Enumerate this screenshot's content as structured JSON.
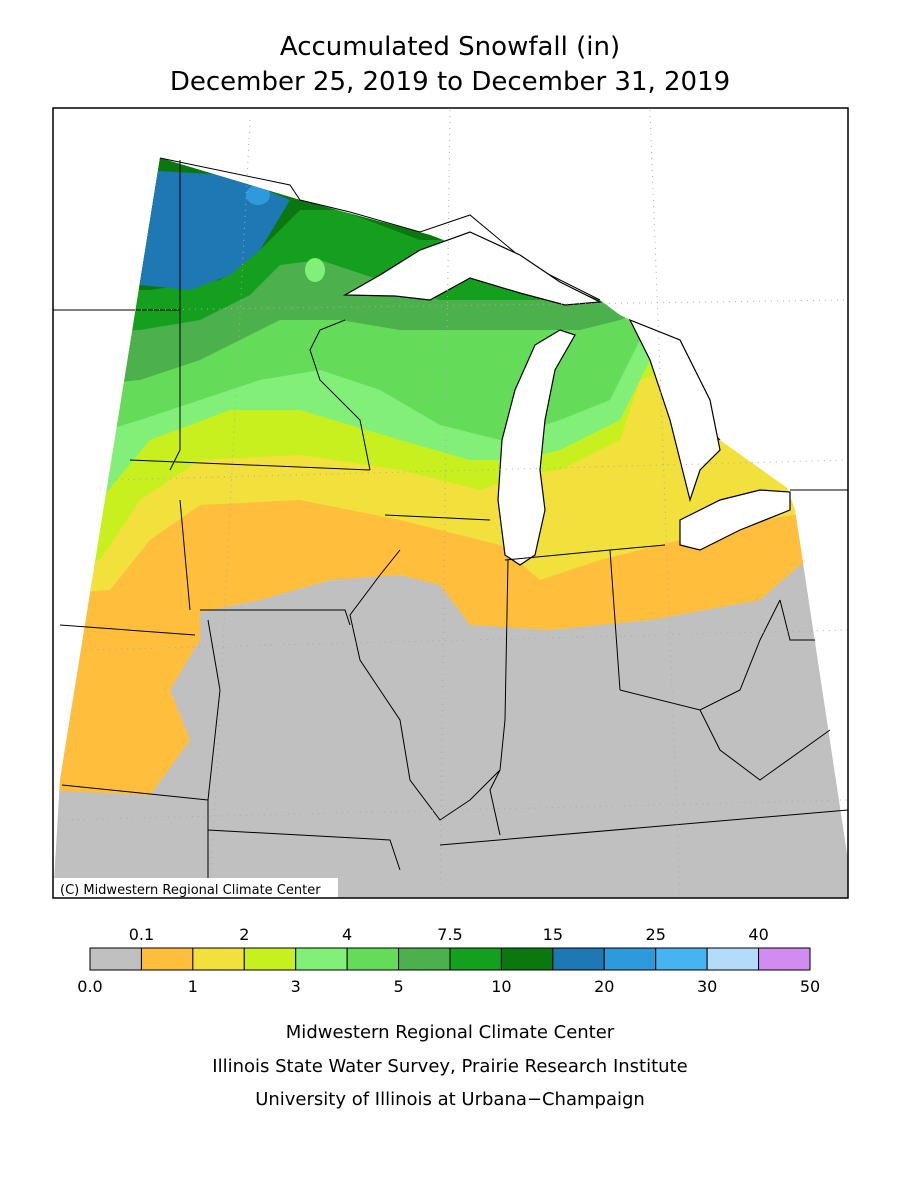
{
  "title": [
    "Accumulated Snowfall (in)",
    "December 25, 2019 to December 31, 2019"
  ],
  "map": {
    "credit": "(C) Midwestern Regional Climate Center"
  },
  "legend": {
    "breaks": [
      {
        "value": 0,
        "label": "0.0"
      },
      0.1,
      1,
      2,
      3,
      4,
      5,
      7.5,
      10,
      15,
      20,
      25,
      30,
      40,
      50
    ],
    "colors": [
      "#c0c0c0",
      "#ffbe3c",
      "#f2e03c",
      "#c8f01e",
      "#82f078",
      "#64dc5a",
      "#4cb04c",
      "#14a01e",
      "#0a780f",
      "#1e78b4",
      "#2e9adc",
      "#46b4f0",
      "#b4dcfa",
      "#d28cf0"
    ]
  },
  "footer": [
    "Midwestern Regional Climate Center",
    "Illinois State Water Survey, Prairie Research Institute",
    "University of Illinois at Urbana−Champaign"
  ]
}
